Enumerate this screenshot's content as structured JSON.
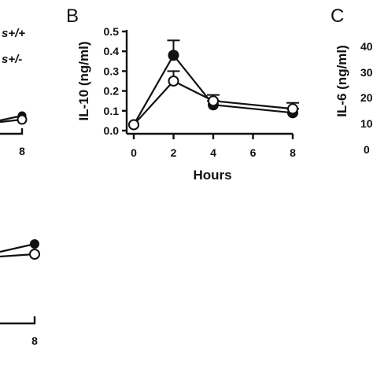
{
  "panels": {
    "B": "B",
    "C": "C"
  },
  "legend": {
    "entry1": "s+/+",
    "entry2": "s+/-"
  },
  "left_fragment": {
    "top_tick": "8",
    "bottom_tick": "8"
  },
  "panel_c": {
    "ylabel": "IL-6 (ng/ml)",
    "tick_labels": [
      "40",
      "30",
      "20",
      "10",
      "0"
    ]
  },
  "chart_data": {
    "type": "line",
    "title": "",
    "xlabel": "Hours",
    "ylabel": "IL-10 (ng/ml)",
    "xlim": [
      0,
      8
    ],
    "ylim": [
      0,
      0.5
    ],
    "xticks": [
      0,
      2,
      4,
      6,
      8
    ],
    "yticks": [
      0.0,
      0.1,
      0.2,
      0.3,
      0.4,
      0.5
    ],
    "xtick_labels": [
      "0",
      "2",
      "4",
      "6",
      "8"
    ],
    "ytick_labels": [
      "0.0",
      "0.1",
      "0.2",
      "0.3",
      "0.4",
      "0.5"
    ],
    "grid": false,
    "series": [
      {
        "marker": "filled-circle",
        "x": [
          0,
          2,
          4,
          8
        ],
        "y": [
          0.03,
          0.38,
          0.13,
          0.09
        ],
        "err": [
          0,
          0.075,
          0.02,
          0.02
        ]
      },
      {
        "marker": "open-circle",
        "x": [
          0,
          2,
          4,
          8
        ],
        "y": [
          0.03,
          0.25,
          0.15,
          0.11
        ],
        "err": [
          0,
          0.05,
          0.03,
          0.03
        ]
      }
    ]
  }
}
